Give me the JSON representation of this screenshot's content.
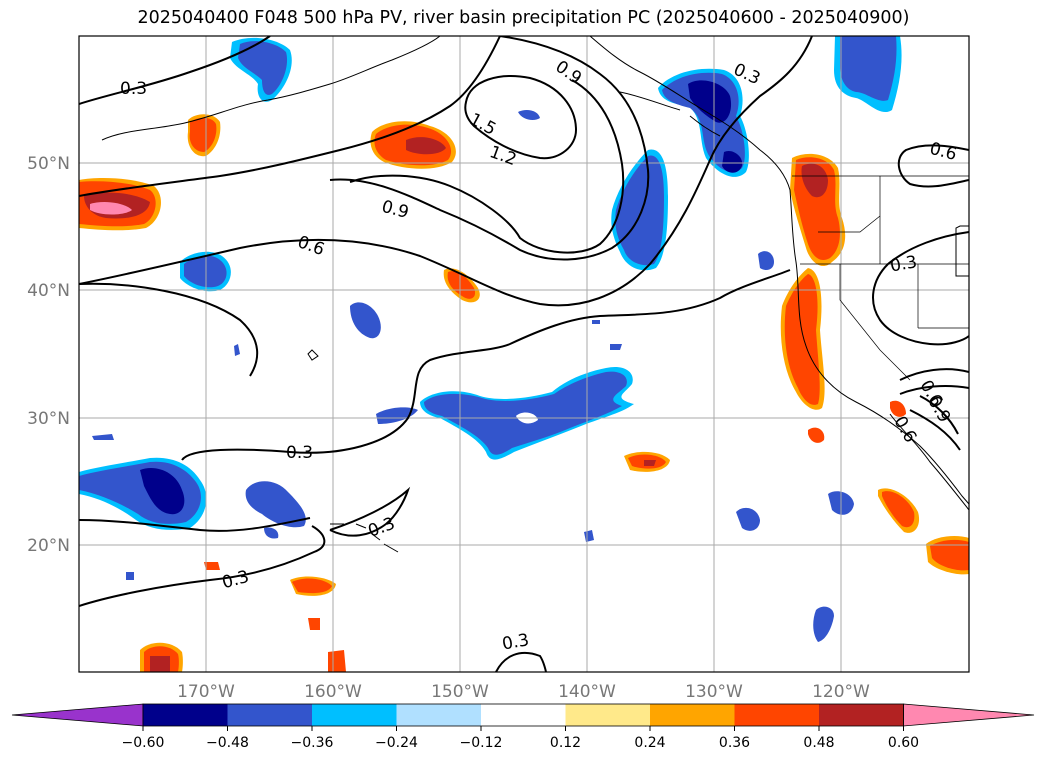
{
  "title": "2025040400 F048 500 hPa PV, river basin precipitation PC (2025040600 - 2025040900)",
  "latitude_labels": [
    "50°N",
    "40°N",
    "30°N",
    "20°N"
  ],
  "longitude_labels": [
    "170°W",
    "160°W",
    "150°W",
    "140°W",
    "130°W",
    "120°W"
  ],
  "pv_contour_labels": [
    "0.3",
    "0.9",
    "0.3",
    "1.5",
    "1.2",
    "0.6",
    "0.9",
    "0.6",
    "0.3",
    "0.3",
    "0.3",
    "0.3",
    "0.3",
    "0.6",
    "0.9",
    "0.6"
  ],
  "colorbar": {
    "ticks": [
      "−0.60",
      "−0.48",
      "−0.36",
      "−0.24",
      "−0.12",
      "0.12",
      "0.24",
      "0.36",
      "0.48",
      "0.60"
    ],
    "colors": [
      "#9933cc",
      "#00008b",
      "#3355cc",
      "#00bfff",
      "#b0e0ff",
      "#ffffff",
      "#ffe98a",
      "#ffa500",
      "#ff4500",
      "#b22222",
      "#ff88b0"
    ]
  }
}
